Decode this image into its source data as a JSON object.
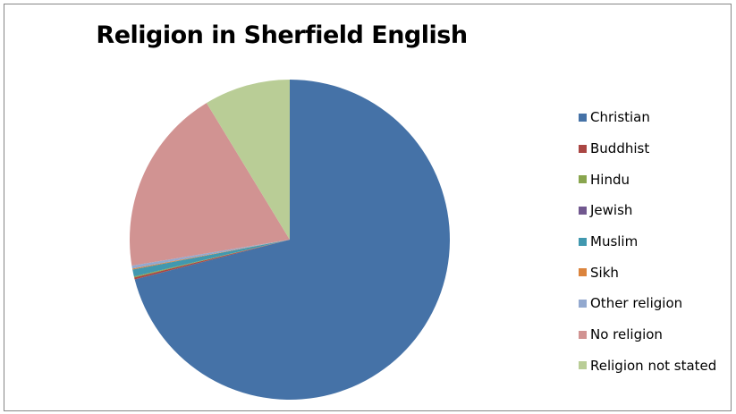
{
  "chart_data": {
    "type": "pie",
    "title": "Religion in Sherfield English",
    "legend_position": "right",
    "slices": [
      {
        "label": "Christian",
        "value": 71.0,
        "color": "#4572A7"
      },
      {
        "label": "Buddhist",
        "value": 0.2,
        "color": "#AA4643"
      },
      {
        "label": "Hindu",
        "value": 0.1,
        "color": "#89A54E"
      },
      {
        "label": "Jewish",
        "value": 0.0,
        "color": "#71588F"
      },
      {
        "label": "Muslim",
        "value": 0.7,
        "color": "#4198AF"
      },
      {
        "label": "Sikh",
        "value": 0.1,
        "color": "#DB843D"
      },
      {
        "label": "Other religion",
        "value": 0.3,
        "color": "#93A9CF"
      },
      {
        "label": "No religion",
        "value": 18.9,
        "color": "#D19392"
      },
      {
        "label": "Religion not stated",
        "value": 8.7,
        "color": "#B9CD96"
      }
    ]
  }
}
